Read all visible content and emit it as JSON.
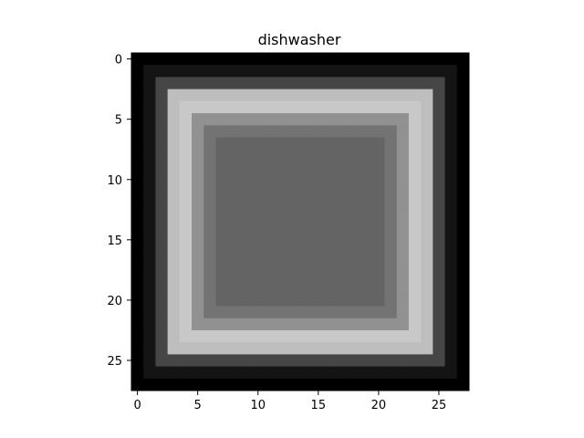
{
  "chart_data": {
    "type": "heatmap",
    "title": "dishwasher",
    "xlabel": "",
    "ylabel": "",
    "colormap": "gray",
    "value_range": [
      0,
      255
    ],
    "rows": 28,
    "cols": 28,
    "xlim": [
      -0.5,
      27.5
    ],
    "ylim": [
      27.5,
      -0.5
    ],
    "xticks": [
      0,
      5,
      10,
      15,
      20,
      25
    ],
    "yticks": [
      0,
      5,
      10,
      15,
      20,
      25
    ],
    "grid": false,
    "frame_color": "#000000",
    "inner_value": 100,
    "rings": [
      {
        "from": 0,
        "value": 0
      },
      {
        "from": 1,
        "value": 20
      },
      {
        "from": 2,
        "value": 70
      },
      {
        "from": 3,
        "value": 190
      },
      {
        "from": 4,
        "value": 200
      },
      {
        "from": 5,
        "value": 145
      },
      {
        "from": 6,
        "value": 115
      },
      {
        "from": 7,
        "value": 100
      }
    ],
    "notes_visible_pattern": "bright rectangular ring around a darker gray center on a black background"
  }
}
